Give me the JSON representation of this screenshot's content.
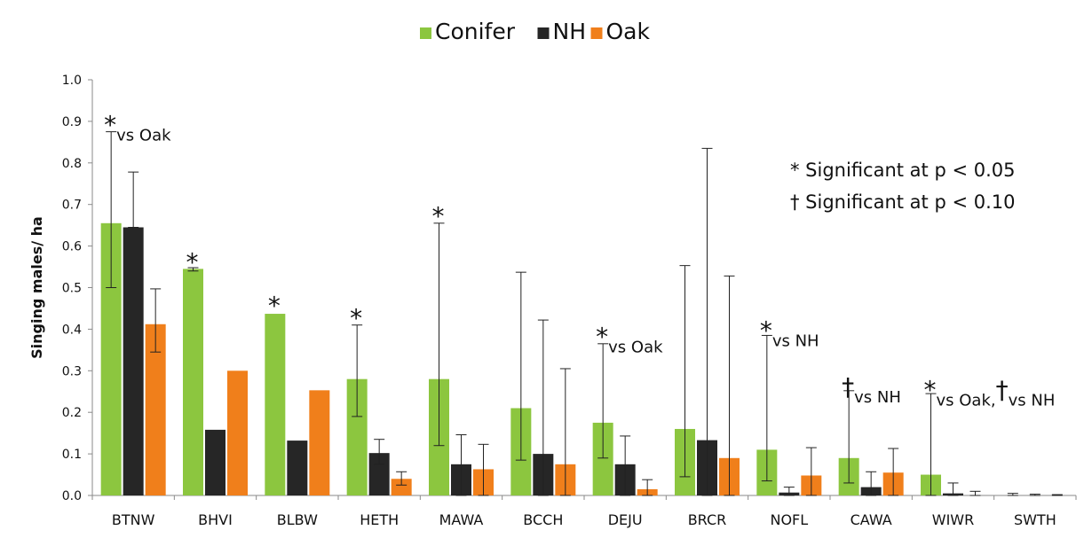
{
  "chart_data": {
    "type": "bar",
    "title": "",
    "xlabel": "",
    "ylabel": "Singing males/ ha",
    "ylim": [
      0,
      1.0
    ],
    "yticks": [
      "0.0",
      "0.1",
      "0.2",
      "0.3",
      "0.4",
      "0.5",
      "0.6",
      "0.7",
      "0.8",
      "0.9",
      "1.0"
    ],
    "grid": false,
    "legend_position": "top-center",
    "categories": [
      "BTNW",
      "BHVI",
      "BLBW",
      "HETH",
      "MAWA",
      "BCCH",
      "DEJU",
      "BRCR",
      "NOFL",
      "CAWA",
      "WIWR",
      "SWTH"
    ],
    "series": [
      {
        "name": "Conifer",
        "color": "#8cc63f",
        "values": [
          0.655,
          0.545,
          0.437,
          0.28,
          0.28,
          0.21,
          0.175,
          0.16,
          0.11,
          0.09,
          0.05,
          0.0
        ],
        "err_low": [
          0.5,
          0.54,
          0.437,
          0.19,
          0.12,
          0.085,
          0.09,
          0.045,
          0.035,
          0.03,
          0.0,
          0.0
        ],
        "err_high": [
          0.875,
          0.548,
          0.437,
          0.41,
          0.655,
          0.537,
          0.365,
          0.553,
          0.385,
          0.252,
          0.245,
          0.005
        ]
      },
      {
        "name": "NH",
        "color": "#262626",
        "values": [
          0.645,
          0.158,
          0.132,
          0.102,
          0.075,
          0.1,
          0.075,
          0.133,
          0.007,
          0.02,
          0.005,
          0.0
        ],
        "err_low": [
          0.645,
          0.158,
          0.132,
          0.075,
          0.0,
          0.0,
          0.0,
          0.0,
          0.0,
          0.0,
          0.0,
          0.0
        ],
        "err_high": [
          0.778,
          0.158,
          0.132,
          0.135,
          0.146,
          0.422,
          0.143,
          0.835,
          0.02,
          0.057,
          0.03,
          0.003
        ]
      },
      {
        "name": "Oak",
        "color": "#f07f1b",
        "values": [
          0.412,
          0.3,
          0.253,
          0.04,
          0.063,
          0.075,
          0.015,
          0.09,
          0.048,
          0.055,
          0.0,
          0.0
        ],
        "err_low": [
          0.345,
          0.3,
          0.253,
          0.025,
          0.0,
          0.0,
          0.0,
          0.0,
          0.0,
          0.0,
          0.0,
          0.0
        ],
        "err_high": [
          0.497,
          0.3,
          0.253,
          0.057,
          0.123,
          0.305,
          0.038,
          0.528,
          0.115,
          0.113,
          0.01,
          0.002
        ]
      }
    ],
    "annotations": [
      {
        "category": "BTNW",
        "main": "*",
        "sub": "vs Oak",
        "level": 0.905
      },
      {
        "category": "BHVI",
        "main": "*",
        "sub": "",
        "level": 0.575
      },
      {
        "category": "BLBW",
        "main": "*",
        "sub": "",
        "level": 0.47
      },
      {
        "category": "HETH",
        "main": "*",
        "sub": "",
        "level": 0.44
      },
      {
        "category": "MAWA",
        "main": "*",
        "sub": "",
        "level": 0.685
      },
      {
        "category": "DEJU",
        "main": "*",
        "sub": "vs Oak",
        "level": 0.395
      },
      {
        "category": "NOFL",
        "main": "*",
        "sub": "vs NH",
        "level": 0.41
      },
      {
        "category": "CAWA",
        "main": "†",
        "sub": "vs NH",
        "level": 0.275
      },
      {
        "category": "WIWR",
        "main": "*",
        "sub": "vs Oak,",
        "main2": "†",
        "sub2": "vs NH",
        "level": 0.268
      }
    ],
    "significance_notes": [
      "* Significant at p < 0.05",
      "† Significant at p < 0.10"
    ]
  }
}
